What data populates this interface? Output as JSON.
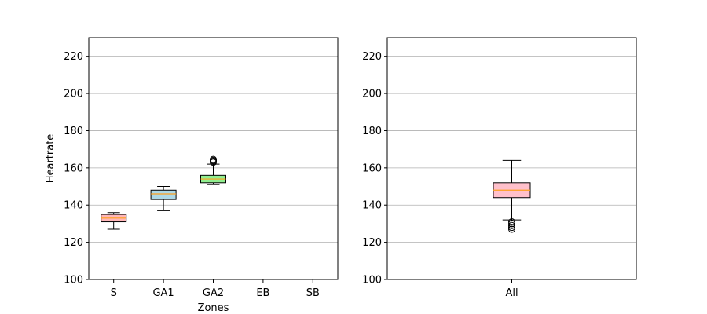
{
  "figure": {
    "background": "#ffffff",
    "grid_color": "#b0b0b0",
    "median_color": "#ff9f1c",
    "box_edge_color": "#000000"
  },
  "chart_data": [
    {
      "type": "boxplot",
      "title": "",
      "xlabel": "Zones",
      "ylabel": "Heartrate",
      "ylim": [
        100,
        230
      ],
      "yticks": [
        100,
        120,
        140,
        160,
        180,
        200,
        220
      ],
      "grid": "y",
      "categories": [
        "S",
        "GA1",
        "GA2",
        "EB",
        "SB"
      ],
      "boxes": [
        {
          "category": "S",
          "whisker_low": 127,
          "q1": 131,
          "median": 133,
          "q3": 135,
          "whisker_high": 136,
          "outliers": [],
          "fill": "#ffb6b9"
        },
        {
          "category": "GA1",
          "whisker_low": 137,
          "q1": 143,
          "median": 146,
          "q3": 148,
          "whisker_high": 150,
          "outliers": [],
          "fill": "#add8e6"
        },
        {
          "category": "GA2",
          "whisker_low": 151,
          "q1": 152,
          "median": 154,
          "q3": 156,
          "whisker_high": 162,
          "outliers": [
            163,
            163.5,
            164,
            164.5
          ],
          "fill": "#90ee90"
        },
        {
          "category": "EB",
          "empty": true
        },
        {
          "category": "SB",
          "empty": true
        }
      ]
    },
    {
      "type": "boxplot",
      "title": "",
      "xlabel": "",
      "ylabel": "",
      "ylim": [
        100,
        230
      ],
      "yticks": [
        100,
        120,
        140,
        160,
        180,
        200,
        220
      ],
      "grid": "y",
      "categories": [
        "All"
      ],
      "boxes": [
        {
          "category": "All",
          "whisker_low": 132,
          "q1": 144,
          "median": 148,
          "q3": 152,
          "whisker_high": 164,
          "outliers": [
            127,
            128,
            129,
            130,
            131
          ],
          "fill": "#ffc0cb"
        }
      ]
    }
  ]
}
